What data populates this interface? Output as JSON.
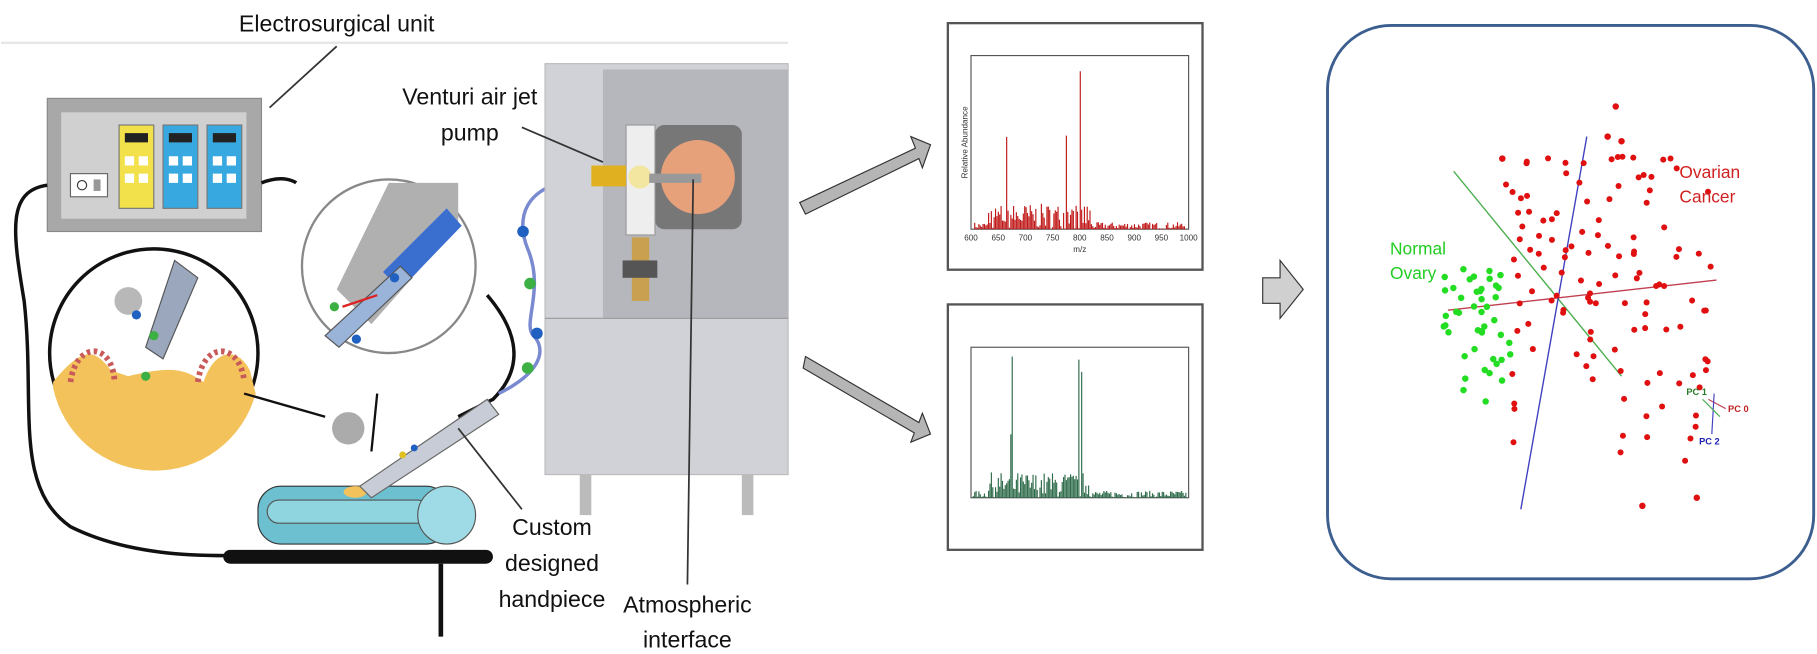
{
  "labels": {
    "electrosurgical_unit": "Electrosurgical unit",
    "venturi_pump": [
      "Venturi air jet",
      "pump"
    ],
    "handpiece": [
      "Custom",
      "designed",
      "handpiece"
    ],
    "atmospheric_interface": [
      "Atmospheric",
      "interface"
    ]
  },
  "spectrum_top": {
    "y_label": "Relative Abundance",
    "x_label": "m/z",
    "x_ticks": [
      "600",
      "650",
      "700",
      "750",
      "800",
      "850",
      "900",
      "950",
      "1000"
    ]
  },
  "pca": {
    "normal_ovary": [
      "Normal",
      "Ovary"
    ],
    "ovarian_cancer": [
      "Ovarian",
      "Cancer"
    ],
    "axes": [
      "PC 1",
      "PC 0",
      "PC 2"
    ]
  }
}
